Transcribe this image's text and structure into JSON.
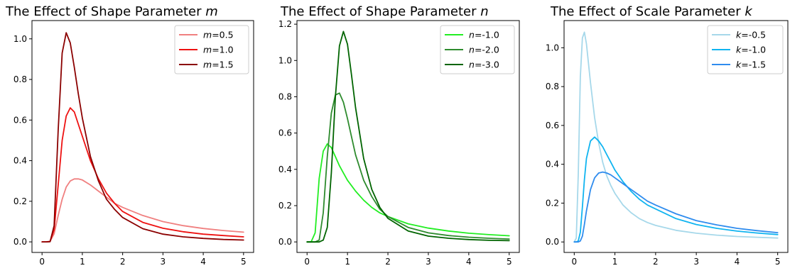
{
  "chart_data": [
    {
      "type": "line",
      "title": "The Effect of Shape Parameter ",
      "title_var": "m",
      "xlim": [
        -0.25,
        5.25
      ],
      "ylim": [
        -0.052,
        1.09
      ],
      "xticks": [
        0,
        1,
        2,
        3,
        4,
        5
      ],
      "xtick_labels": [
        "0",
        "1",
        "2",
        "3",
        "4",
        "5"
      ],
      "yticks": [
        0.0,
        0.2,
        0.4,
        0.6,
        0.8,
        1.0
      ],
      "ytick_labels": [
        "0.0",
        "0.2",
        "0.4",
        "0.6",
        "0.8",
        "1.0"
      ],
      "grid": false,
      "legend_position": "upper-right",
      "x": [
        0,
        0.1,
        0.2,
        0.3,
        0.4,
        0.5,
        0.6,
        0.7,
        0.8,
        0.9,
        1.0,
        1.2,
        1.4,
        1.6,
        1.8,
        2.0,
        2.5,
        3.0,
        3.5,
        4.0,
        4.5,
        5.0
      ],
      "series": [
        {
          "var": "m",
          "value": "=0.5",
          "color": "#f08080",
          "values": [
            0,
            0,
            0.003,
            0.04,
            0.13,
            0.21,
            0.27,
            0.3,
            0.31,
            0.31,
            0.305,
            0.28,
            0.25,
            0.22,
            0.19,
            0.17,
            0.13,
            0.1,
            0.08,
            0.066,
            0.056,
            0.048
          ]
        },
        {
          "var": "m",
          "value": "=1.0",
          "color": "#ee1111",
          "values": [
            0,
            0,
            0.002,
            0.06,
            0.28,
            0.5,
            0.62,
            0.66,
            0.64,
            0.58,
            0.52,
            0.4,
            0.31,
            0.24,
            0.19,
            0.15,
            0.096,
            0.067,
            0.05,
            0.038,
            0.031,
            0.025
          ]
        },
        {
          "var": "m",
          "value": "=1.5",
          "color": "#8b0000",
          "values": [
            0,
            0,
            0.001,
            0.08,
            0.55,
            0.93,
            1.03,
            0.98,
            0.86,
            0.73,
            0.61,
            0.42,
            0.3,
            0.21,
            0.16,
            0.12,
            0.065,
            0.038,
            0.025,
            0.017,
            0.012,
            0.009
          ]
        }
      ]
    },
    {
      "type": "line",
      "title": "The Effect of Shape Parameter ",
      "title_var": "n",
      "xlim": [
        -0.25,
        5.25
      ],
      "ylim": [
        -0.058,
        1.22
      ],
      "xticks": [
        0,
        1,
        2,
        3,
        4,
        5
      ],
      "xtick_labels": [
        "0",
        "1",
        "2",
        "3",
        "4",
        "5"
      ],
      "yticks": [
        0.0,
        0.2,
        0.4,
        0.6,
        0.8,
        1.0,
        1.2
      ],
      "ytick_labels": [
        "0.0",
        "0.2",
        "0.4",
        "0.6",
        "0.8",
        "1.0",
        "1.2"
      ],
      "grid": false,
      "legend_position": "upper-right",
      "x": [
        0,
        0.1,
        0.2,
        0.3,
        0.4,
        0.5,
        0.6,
        0.7,
        0.8,
        0.9,
        1.0,
        1.1,
        1.2,
        1.4,
        1.6,
        1.8,
        2.0,
        2.5,
        3.0,
        3.5,
        4.0,
        4.5,
        5.0
      ],
      "series": [
        {
          "var": "n",
          "value": "=-1.0",
          "color": "#22ee22",
          "values": [
            0,
            0,
            0.05,
            0.35,
            0.5,
            0.54,
            0.52,
            0.47,
            0.42,
            0.38,
            0.34,
            0.31,
            0.28,
            0.23,
            0.19,
            0.16,
            0.14,
            0.1,
            0.076,
            0.06,
            0.048,
            0.04,
            0.034
          ]
        },
        {
          "var": "n",
          "value": "=-2.0",
          "color": "#2e8b2e",
          "values": [
            0,
            0,
            0,
            0.01,
            0.16,
            0.47,
            0.71,
            0.81,
            0.82,
            0.77,
            0.68,
            0.58,
            0.48,
            0.34,
            0.25,
            0.18,
            0.14,
            0.08,
            0.05,
            0.035,
            0.026,
            0.02,
            0.016
          ]
        },
        {
          "var": "n",
          "value": "=-3.0",
          "color": "#006400",
          "values": [
            0,
            0,
            0,
            0,
            0.01,
            0.08,
            0.38,
            0.8,
            1.08,
            1.16,
            1.09,
            0.92,
            0.74,
            0.46,
            0.29,
            0.19,
            0.13,
            0.06,
            0.032,
            0.02,
            0.013,
            0.009,
            0.007
          ]
        }
      ]
    },
    {
      "type": "line",
      "title": "The Effect of Scale Parameter ",
      "title_var": "k",
      "xlim": [
        -0.25,
        5.25
      ],
      "ylim": [
        -0.054,
        1.14
      ],
      "xticks": [
        0,
        1,
        2,
        3,
        4,
        5
      ],
      "xtick_labels": [
        "0",
        "1",
        "2",
        "3",
        "4",
        "5"
      ],
      "yticks": [
        0.0,
        0.2,
        0.4,
        0.6,
        0.8,
        1.0
      ],
      "ytick_labels": [
        "0.0",
        "0.2",
        "0.4",
        "0.6",
        "0.8",
        "1.0"
      ],
      "grid": false,
      "legend_position": "upper-right",
      "x": [
        0,
        0.05,
        0.1,
        0.15,
        0.2,
        0.25,
        0.3,
        0.4,
        0.5,
        0.6,
        0.7,
        0.8,
        0.9,
        1.0,
        1.2,
        1.4,
        1.6,
        1.8,
        2.0,
        2.5,
        3.0,
        3.5,
        4.0,
        4.5,
        5.0
      ],
      "series": [
        {
          "var": "k",
          "value": "=-0.5",
          "color": "#a6d8ea",
          "values": [
            0,
            0.02,
            0.35,
            0.85,
            1.05,
            1.08,
            1.02,
            0.82,
            0.64,
            0.51,
            0.41,
            0.34,
            0.29,
            0.25,
            0.19,
            0.15,
            0.12,
            0.1,
            0.085,
            0.06,
            0.045,
            0.035,
            0.028,
            0.024,
            0.02
          ]
        },
        {
          "var": "k",
          "value": "=-1.0",
          "color": "#10b4f0",
          "values": [
            0,
            0,
            0.005,
            0.05,
            0.18,
            0.32,
            0.43,
            0.52,
            0.54,
            0.52,
            0.49,
            0.45,
            0.41,
            0.37,
            0.31,
            0.26,
            0.22,
            0.19,
            0.17,
            0.12,
            0.09,
            0.07,
            0.056,
            0.046,
            0.038
          ]
        },
        {
          "var": "k",
          "value": "=-1.5",
          "color": "#2f8cee",
          "values": [
            0,
            0,
            0,
            0.005,
            0.03,
            0.09,
            0.16,
            0.27,
            0.33,
            0.355,
            0.36,
            0.355,
            0.345,
            0.33,
            0.3,
            0.27,
            0.24,
            0.21,
            0.19,
            0.145,
            0.11,
            0.088,
            0.07,
            0.058,
            0.048
          ]
        }
      ]
    }
  ]
}
